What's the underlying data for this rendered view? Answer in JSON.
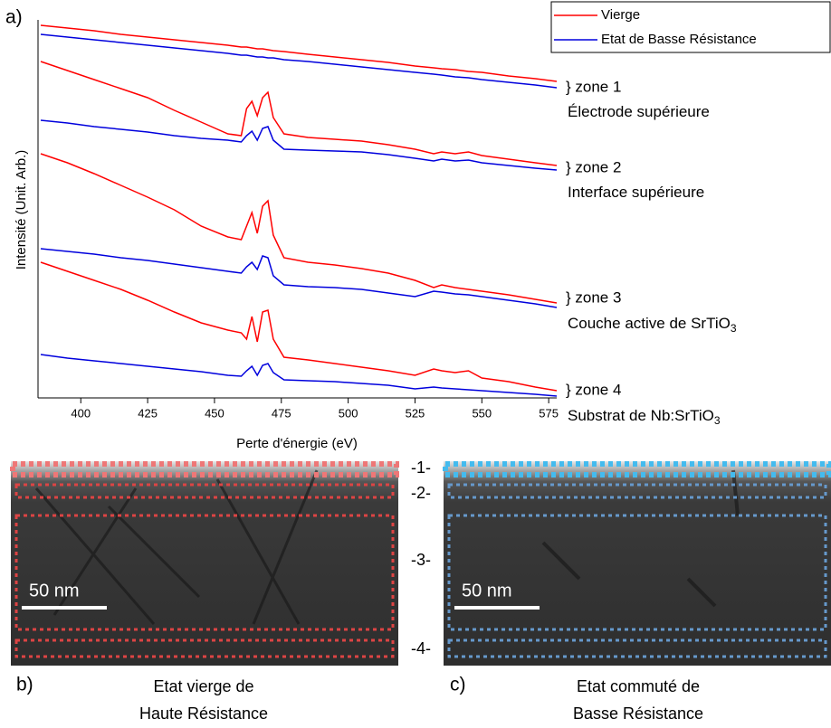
{
  "chart_data": {
    "type": "line",
    "panel_label": "a)",
    "x_label": "Perte d'énergie (eV)",
    "y_label": "Intensité (Unit. Arb.)",
    "xlim": [
      384,
      578
    ],
    "xticks": [
      400,
      425,
      450,
      475,
      500,
      525,
      550,
      575
    ],
    "ylim": [
      0,
      418
    ],
    "x": [
      385,
      395,
      405,
      415,
      425,
      435,
      445,
      455,
      460,
      462,
      464,
      466,
      468,
      470,
      472,
      476,
      485,
      495,
      505,
      515,
      525,
      532,
      535,
      540,
      545,
      550,
      560,
      570,
      578
    ],
    "series": [
      {
        "name": "Vierge",
        "color": "#ff0000",
        "values": [
          412,
          409,
          406,
          402,
          399,
          396,
          393,
          390,
          388,
          388,
          387,
          386,
          386,
          385,
          384,
          383,
          380,
          377,
          374,
          371,
          367,
          365,
          364,
          363,
          361,
          360,
          356,
          353,
          350
        ]
      },
      {
        "name": "Etat de Basse Résistance",
        "color": "#0000dd",
        "values": [
          402,
          399,
          396,
          393,
          390,
          387,
          384,
          381,
          379,
          379,
          378,
          377,
          377,
          376,
          376,
          374,
          372,
          369,
          366,
          363,
          360,
          358,
          357,
          355,
          354,
          352,
          349,
          346,
          343
        ]
      },
      {
        "name": "Vierge",
        "color": "#ff0000",
        "values": [
          372,
          362,
          352,
          342,
          332,
          318,
          305,
          292,
          290,
          320,
          328,
          312,
          332,
          338,
          310,
          292,
          288,
          286,
          284,
          280,
          275,
          270,
          272,
          270,
          272,
          268,
          264,
          260,
          257
        ]
      },
      {
        "name": "Etat de Basse Résistance",
        "color": "#0000dd",
        "values": [
          307,
          304,
          300,
          297,
          294,
          290,
          287,
          285,
          283,
          290,
          295,
          285,
          298,
          300,
          285,
          275,
          274,
          273,
          272,
          269,
          265,
          262,
          264,
          262,
          263,
          260,
          257,
          254,
          252
        ]
      },
      {
        "name": "Vierge",
        "color": "#ff0000",
        "values": [
          270,
          260,
          248,
          235,
          222,
          208,
          190,
          178,
          175,
          190,
          205,
          182,
          212,
          218,
          180,
          155,
          150,
          147,
          143,
          138,
          130,
          122,
          125,
          122,
          120,
          118,
          114,
          109,
          105
        ]
      },
      {
        "name": "Etat de Basse Résistance",
        "color": "#0000dd",
        "values": [
          165,
          162,
          159,
          155,
          152,
          148,
          144,
          140,
          138,
          145,
          150,
          142,
          157,
          155,
          135,
          125,
          123,
          122,
          120,
          116,
          112,
          118,
          117,
          115,
          114,
          112,
          108,
          104,
          100
        ]
      },
      {
        "name": "Vierge",
        "color": "#ff0000",
        "values": [
          150,
          140,
          130,
          120,
          108,
          95,
          83,
          75,
          72,
          65,
          90,
          62,
          95,
          97,
          65,
          45,
          42,
          38,
          34,
          30,
          25,
          32,
          30,
          28,
          30,
          22,
          18,
          12,
          8
        ]
      },
      {
        "name": "Etat de Basse Résistance",
        "color": "#0000dd",
        "values": [
          48,
          44,
          41,
          38,
          35,
          32,
          29,
          25,
          24,
          30,
          35,
          25,
          36,
          38,
          28,
          20,
          19,
          18,
          16,
          14,
          10,
          12,
          11,
          10,
          9,
          8,
          6,
          4,
          2
        ]
      }
    ],
    "annotations": [
      {
        "zone": "} zone 1",
        "text": "Électrode supérieure"
      },
      {
        "zone": "} zone 2",
        "text": "Interface supérieure"
      },
      {
        "zone": "} zone 3",
        "text": "Couche active de SrTiO",
        "sub": "3"
      },
      {
        "zone": "} zone 4",
        "text": "Substrat de Nb:SrTiO",
        "sub": "3"
      }
    ]
  },
  "panels": {
    "scale": "50 nm",
    "zones": [
      "-1-",
      "-2-",
      "-3-",
      "-4-"
    ],
    "b": {
      "label": "b)",
      "caption": [
        "Etat vierge de",
        "Haute Résistance"
      ]
    },
    "c": {
      "label": "c)",
      "caption": [
        "Etat commuté de",
        "Basse Résistance"
      ]
    }
  }
}
